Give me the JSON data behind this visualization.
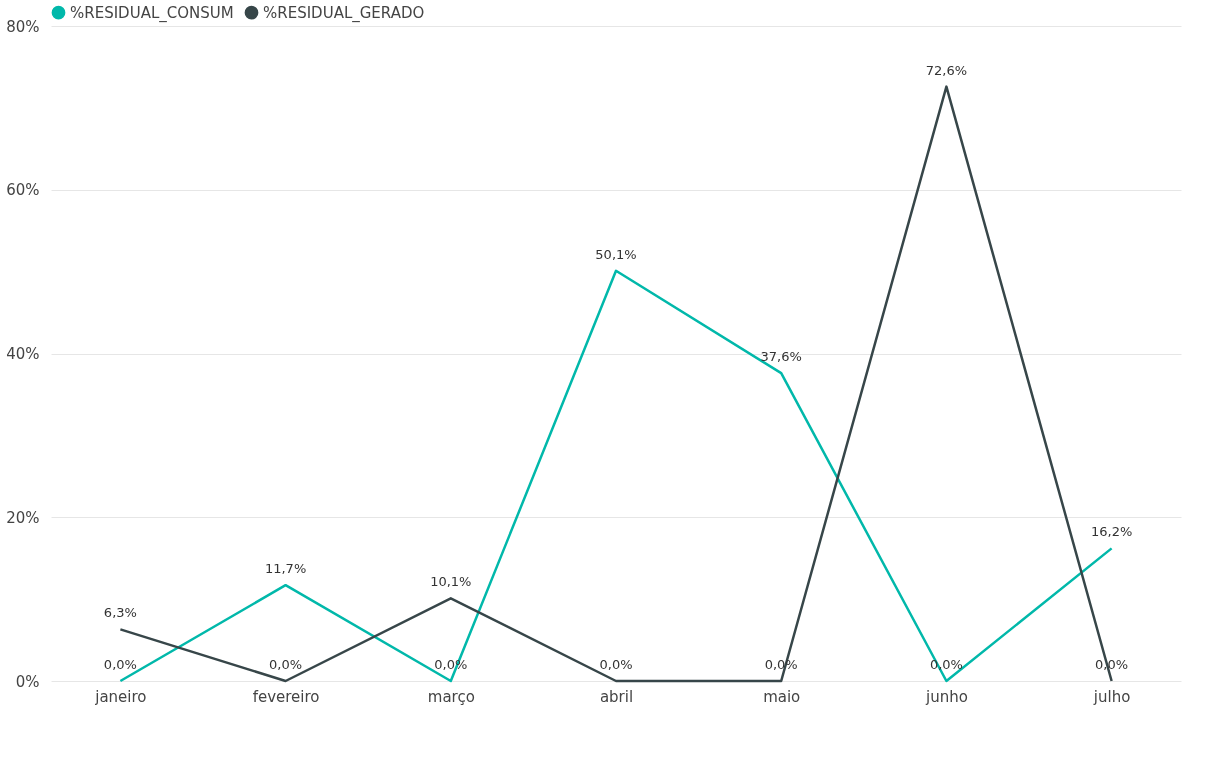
{
  "chart_data": {
    "type": "line",
    "categories": [
      "janeiro",
      "fevereiro",
      "março",
      "abril",
      "maio",
      "junho",
      "julho"
    ],
    "series": [
      {
        "name": "%RESIDUAL_CONSUM",
        "color": "#01b8aa",
        "values": [
          0.0,
          11.7,
          0.0,
          50.1,
          37.6,
          0.0,
          16.2
        ],
        "value_labels": [
          "0,0%",
          "11,7%",
          "0,0%",
          "50,1%",
          "37,6%",
          "0,0%",
          "16,2%"
        ]
      },
      {
        "name": "%RESIDUAL_GERADO",
        "color": "#374649",
        "values": [
          6.3,
          0.0,
          10.1,
          0.0,
          0.0,
          72.6,
          0.0
        ],
        "value_labels": [
          "6,3%",
          "0,0%",
          "10,1%",
          "0,0%",
          "0,0%",
          "72,6%",
          "0,0%"
        ]
      }
    ],
    "ylim": [
      0,
      80
    ],
    "yticks": [
      {
        "value": 0,
        "label": "0%"
      },
      {
        "value": 20,
        "label": "20%"
      },
      {
        "value": 40,
        "label": "40%"
      },
      {
        "value": 60,
        "label": "60%"
      },
      {
        "value": 80,
        "label": "80%"
      }
    ],
    "grid": "y",
    "legend": "top left",
    "marker": "none",
    "line_style": "solid"
  }
}
